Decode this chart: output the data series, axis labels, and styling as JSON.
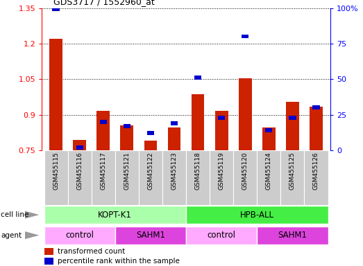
{
  "title": "GDS3717 / 1552960_at",
  "samples": [
    "GSM455115",
    "GSM455116",
    "GSM455117",
    "GSM455121",
    "GSM455122",
    "GSM455123",
    "GSM455118",
    "GSM455119",
    "GSM455120",
    "GSM455124",
    "GSM455125",
    "GSM455126"
  ],
  "red_values": [
    1.22,
    0.795,
    0.915,
    0.855,
    0.79,
    0.845,
    0.985,
    0.915,
    1.055,
    0.845,
    0.955,
    0.935
  ],
  "blue_values": [
    99,
    2,
    20,
    17,
    12,
    19,
    51,
    23,
    80,
    14,
    23,
    30
  ],
  "ylim_left": [
    0.75,
    1.35
  ],
  "ylim_right": [
    0,
    100
  ],
  "yticks_left": [
    0.75,
    0.9,
    1.05,
    1.2,
    1.35
  ],
  "yticks_right": [
    0,
    25,
    50,
    75,
    100
  ],
  "cell_line_groups": [
    {
      "label": "KOPT-K1",
      "start": 0,
      "end": 6,
      "color": "#aaffaa"
    },
    {
      "label": "HPB-ALL",
      "start": 6,
      "end": 12,
      "color": "#44ee44"
    }
  ],
  "agent_groups": [
    {
      "label": "control",
      "start": 0,
      "end": 3,
      "color": "#ffaaff"
    },
    {
      "label": "SAHM1",
      "start": 3,
      "end": 6,
      "color": "#dd44dd"
    },
    {
      "label": "control",
      "start": 6,
      "end": 9,
      "color": "#ffaaff"
    },
    {
      "label": "SAHM1",
      "start": 9,
      "end": 12,
      "color": "#dd44dd"
    }
  ],
  "bar_color": "#cc2200",
  "dot_color": "#0000cc",
  "tick_bg": "#cccccc",
  "border_color": "#888888",
  "legend_red": "transformed count",
  "legend_blue": "percentile rank within the sample",
  "cell_line_label": "cell line",
  "agent_label": "agent"
}
